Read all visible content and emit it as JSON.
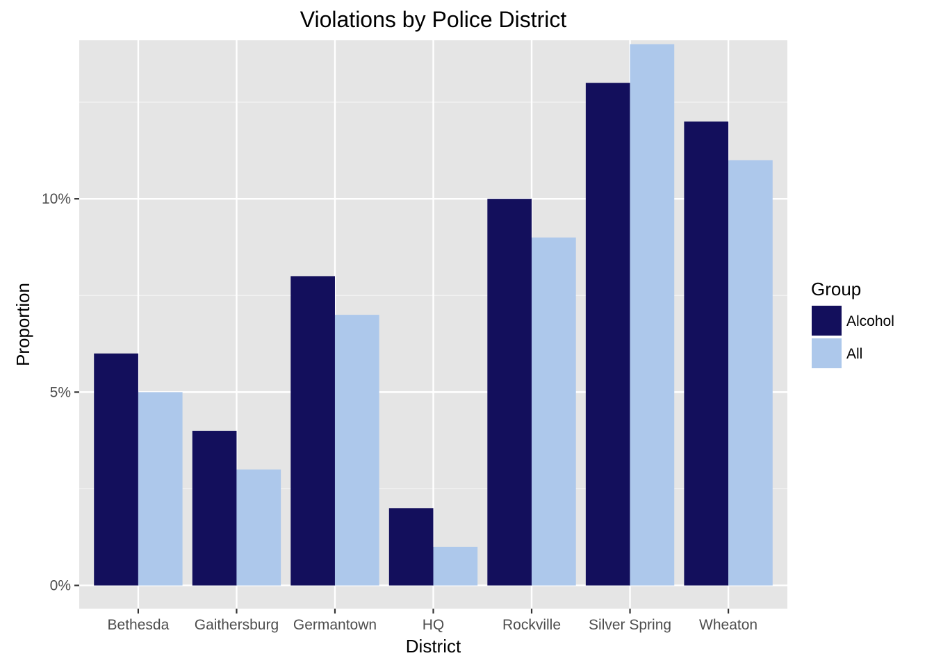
{
  "chart_data": {
    "type": "bar",
    "title": "Violations by Police District",
    "xlabel": "District",
    "ylabel": "Proportion",
    "categories": [
      "Bethesda",
      "Gaithersburg",
      "Germantown",
      "HQ",
      "Rockville",
      "Silver Spring",
      "Wheaton"
    ],
    "series": [
      {
        "name": "Alcohol",
        "color": "#130f5c",
        "values": [
          0.06,
          0.04,
          0.08,
          0.02,
          0.1,
          0.13,
          0.12
        ]
      },
      {
        "name": "All",
        "color": "#adc8eb",
        "values": [
          0.05,
          0.03,
          0.07,
          0.01,
          0.09,
          0.14,
          0.11
        ]
      }
    ],
    "yticks": [
      {
        "value": 0.0,
        "label": "0%"
      },
      {
        "value": 0.05,
        "label": "5%"
      },
      {
        "value": 0.1,
        "label": "10%"
      }
    ],
    "ylim": [
      -0.006,
      0.141
    ],
    "grid": true,
    "legend": {
      "title": "Group",
      "position": "right"
    },
    "panel_background": "#e5e5e5"
  }
}
